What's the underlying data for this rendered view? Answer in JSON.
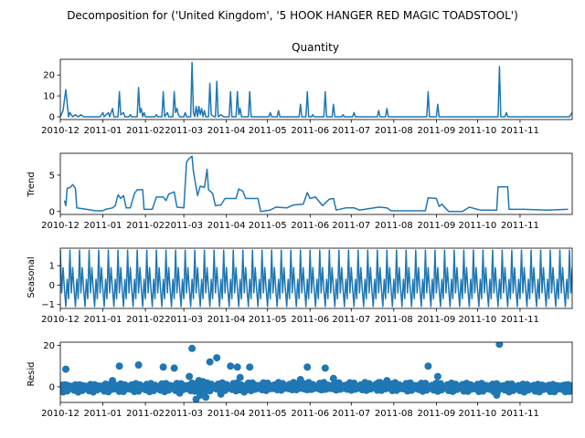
{
  "suptitle": "Decomposition for ('United Kingdom', '5 HOOK HANGER RED MAGIC TOADSTOOL')",
  "chart_data": [
    {
      "type": "line",
      "panel": "observed",
      "title": "Quantity",
      "ylabel": "",
      "ylim": [
        -1.3,
        27.5
      ],
      "yticks": [
        0,
        10,
        20
      ],
      "xlim": [
        "2010-12-01",
        "2011-12-09"
      ],
      "xticks": [
        "2010-12",
        "2011-01",
        "2011-02",
        "2011-03",
        "2011-04",
        "2011-05",
        "2011-06",
        "2011-07",
        "2011-08",
        "2011-09",
        "2011-10",
        "2011-11"
      ],
      "peaks": [
        {
          "x": "2010-12-01",
          "y": 0
        },
        {
          "x": "2010-12-03",
          "y": 3
        },
        {
          "x": "2010-12-05",
          "y": 13
        },
        {
          "x": "2010-12-07",
          "y": 0
        },
        {
          "x": "2010-12-08",
          "y": 2
        },
        {
          "x": "2010-12-10",
          "y": 0
        },
        {
          "x": "2010-12-12",
          "y": 1
        },
        {
          "x": "2010-12-14",
          "y": 0
        },
        {
          "x": "2010-12-16",
          "y": 1
        },
        {
          "x": "2010-12-18",
          "y": 0
        },
        {
          "x": "2010-12-30",
          "y": 0
        },
        {
          "x": "2011-01-01",
          "y": 2
        },
        {
          "x": "2011-01-02",
          "y": 0
        },
        {
          "x": "2011-01-05",
          "y": 2
        },
        {
          "x": "2011-01-06",
          "y": 0
        },
        {
          "x": "2011-01-08",
          "y": 4
        },
        {
          "x": "2011-01-09",
          "y": 0
        },
        {
          "x": "2011-01-12",
          "y": 0
        },
        {
          "x": "2011-01-13",
          "y": 12
        },
        {
          "x": "2011-01-14",
          "y": 1
        },
        {
          "x": "2011-01-16",
          "y": 2
        },
        {
          "x": "2011-01-17",
          "y": 0
        },
        {
          "x": "2011-01-20",
          "y": 0
        },
        {
          "x": "2011-01-21",
          "y": 1
        },
        {
          "x": "2011-01-22",
          "y": 0
        },
        {
          "x": "2011-01-26",
          "y": 0
        },
        {
          "x": "2011-01-27",
          "y": 14
        },
        {
          "x": "2011-01-28",
          "y": 2
        },
        {
          "x": "2011-01-29",
          "y": 4
        },
        {
          "x": "2011-01-30",
          "y": 0
        },
        {
          "x": "2011-01-31",
          "y": 2
        },
        {
          "x": "2011-02-01",
          "y": 0
        },
        {
          "x": "2011-02-08",
          "y": 0
        },
        {
          "x": "2011-02-09",
          "y": 1
        },
        {
          "x": "2011-02-10",
          "y": 0
        },
        {
          "x": "2011-02-13",
          "y": 0
        },
        {
          "x": "2011-02-14",
          "y": 12
        },
        {
          "x": "2011-02-15",
          "y": 0
        },
        {
          "x": "2011-02-17",
          "y": 2
        },
        {
          "x": "2011-02-18",
          "y": 0
        },
        {
          "x": "2011-02-21",
          "y": 0
        },
        {
          "x": "2011-02-22",
          "y": 12
        },
        {
          "x": "2011-02-23",
          "y": 2
        },
        {
          "x": "2011-02-24",
          "y": 4
        },
        {
          "x": "2011-02-25",
          "y": 1
        },
        {
          "x": "2011-02-26",
          "y": 0
        },
        {
          "x": "2011-03-01",
          "y": 0
        },
        {
          "x": "2011-03-02",
          "y": 2
        },
        {
          "x": "2011-03-03",
          "y": 0
        },
        {
          "x": "2011-03-06",
          "y": 0
        },
        {
          "x": "2011-03-07",
          "y": 26
        },
        {
          "x": "2011-03-08",
          "y": 2
        },
        {
          "x": "2011-03-09",
          "y": 0
        },
        {
          "x": "2011-03-10",
          "y": 5
        },
        {
          "x": "2011-03-11",
          "y": 0
        },
        {
          "x": "2011-03-12",
          "y": 5
        },
        {
          "x": "2011-03-13",
          "y": 1
        },
        {
          "x": "2011-03-14",
          "y": 4
        },
        {
          "x": "2011-03-15",
          "y": 0
        },
        {
          "x": "2011-03-16",
          "y": 3
        },
        {
          "x": "2011-03-17",
          "y": 0
        },
        {
          "x": "2011-03-19",
          "y": 0
        },
        {
          "x": "2011-03-20",
          "y": 16
        },
        {
          "x": "2011-03-21",
          "y": 1
        },
        {
          "x": "2011-03-23",
          "y": 0
        },
        {
          "x": "2011-03-24",
          "y": 0
        },
        {
          "x": "2011-03-25",
          "y": 17
        },
        {
          "x": "2011-03-26",
          "y": 0
        },
        {
          "x": "2011-03-28",
          "y": 1
        },
        {
          "x": "2011-03-30",
          "y": 0
        },
        {
          "x": "2011-04-03",
          "y": 0
        },
        {
          "x": "2011-04-04",
          "y": 12
        },
        {
          "x": "2011-04-05",
          "y": 0
        },
        {
          "x": "2011-04-08",
          "y": 0
        },
        {
          "x": "2011-04-09",
          "y": 12
        },
        {
          "x": "2011-04-10",
          "y": 1
        },
        {
          "x": "2011-04-11",
          "y": 4
        },
        {
          "x": "2011-04-12",
          "y": 0
        },
        {
          "x": "2011-04-17",
          "y": 0
        },
        {
          "x": "2011-04-18",
          "y": 12
        },
        {
          "x": "2011-04-19",
          "y": 0
        },
        {
          "x": "2011-05-02",
          "y": 0
        },
        {
          "x": "2011-05-03",
          "y": 2
        },
        {
          "x": "2011-05-04",
          "y": 0
        },
        {
          "x": "2011-05-08",
          "y": 0
        },
        {
          "x": "2011-05-09",
          "y": 3
        },
        {
          "x": "2011-05-10",
          "y": 0
        },
        {
          "x": "2011-05-24",
          "y": 0
        },
        {
          "x": "2011-05-25",
          "y": 6
        },
        {
          "x": "2011-05-26",
          "y": 0
        },
        {
          "x": "2011-05-29",
          "y": 0
        },
        {
          "x": "2011-05-30",
          "y": 12
        },
        {
          "x": "2011-05-31",
          "y": 0
        },
        {
          "x": "2011-06-02",
          "y": 0
        },
        {
          "x": "2011-06-03",
          "y": 1
        },
        {
          "x": "2011-06-04",
          "y": 0
        },
        {
          "x": "2011-06-11",
          "y": 0
        },
        {
          "x": "2011-06-12",
          "y": 12
        },
        {
          "x": "2011-06-13",
          "y": 0
        },
        {
          "x": "2011-06-17",
          "y": 0
        },
        {
          "x": "2011-06-18",
          "y": 6
        },
        {
          "x": "2011-06-19",
          "y": 0
        },
        {
          "x": "2011-06-24",
          "y": 0
        },
        {
          "x": "2011-06-25",
          "y": 1
        },
        {
          "x": "2011-06-26",
          "y": 0
        },
        {
          "x": "2011-07-02",
          "y": 0
        },
        {
          "x": "2011-07-03",
          "y": 2
        },
        {
          "x": "2011-07-04",
          "y": 0
        },
        {
          "x": "2011-07-20",
          "y": 0
        },
        {
          "x": "2011-07-21",
          "y": 3
        },
        {
          "x": "2011-07-22",
          "y": 0
        },
        {
          "x": "2011-07-26",
          "y": 0
        },
        {
          "x": "2011-07-27",
          "y": 4
        },
        {
          "x": "2011-07-28",
          "y": 0
        },
        {
          "x": "2011-08-25",
          "y": 0
        },
        {
          "x": "2011-08-26",
          "y": 12
        },
        {
          "x": "2011-08-27",
          "y": 0
        },
        {
          "x": "2011-09-01",
          "y": 0
        },
        {
          "x": "2011-09-02",
          "y": 6
        },
        {
          "x": "2011-09-03",
          "y": 0
        },
        {
          "x": "2011-10-16",
          "y": 0
        },
        {
          "x": "2011-10-17",
          "y": 24
        },
        {
          "x": "2011-10-18",
          "y": 0
        },
        {
          "x": "2011-10-21",
          "y": 0
        },
        {
          "x": "2011-10-22",
          "y": 2
        },
        {
          "x": "2011-10-23",
          "y": 0
        },
        {
          "x": "2011-12-07",
          "y": 0
        },
        {
          "x": "2011-12-09",
          "y": 2
        }
      ]
    },
    {
      "type": "line",
      "panel": "trend",
      "title": "",
      "ylabel": "Trend",
      "ylim": [
        -0.4,
        8.0
      ],
      "yticks": [
        0,
        5
      ],
      "xlim": [
        "2010-12-01",
        "2011-12-09"
      ],
      "xticks": [
        "2010-12",
        "2011-01",
        "2011-02",
        "2011-03",
        "2011-04",
        "2011-05",
        "2011-06",
        "2011-07",
        "2011-08",
        "2011-09",
        "2011-10",
        "2011-11"
      ],
      "points": [
        {
          "x": "2010-12-04",
          "y": 1.5
        },
        {
          "x": "2010-12-05",
          "y": 0.8
        },
        {
          "x": "2010-12-06",
          "y": 3.2
        },
        {
          "x": "2010-12-08",
          "y": 3.3
        },
        {
          "x": "2010-12-10",
          "y": 3.7
        },
        {
          "x": "2010-12-12",
          "y": 3.2
        },
        {
          "x": "2010-12-13",
          "y": 0.5
        },
        {
          "x": "2010-12-20",
          "y": 0.3
        },
        {
          "x": "2010-12-27",
          "y": 0.1
        },
        {
          "x": "2011-01-01",
          "y": 0.1
        },
        {
          "x": "2011-01-03",
          "y": 0.3
        },
        {
          "x": "2011-01-08",
          "y": 0.5
        },
        {
          "x": "2011-01-10",
          "y": 0.8
        },
        {
          "x": "2011-01-12",
          "y": 2.3
        },
        {
          "x": "2011-01-14",
          "y": 1.8
        },
        {
          "x": "2011-01-16",
          "y": 2.2
        },
        {
          "x": "2011-01-18",
          "y": 0.5
        },
        {
          "x": "2011-01-21",
          "y": 0.5
        },
        {
          "x": "2011-01-24",
          "y": 2.5
        },
        {
          "x": "2011-01-26",
          "y": 3.0
        },
        {
          "x": "2011-01-30",
          "y": 3.0
        },
        {
          "x": "2011-01-31",
          "y": 0.3
        },
        {
          "x": "2011-02-06",
          "y": 0.3
        },
        {
          "x": "2011-02-09",
          "y": 2.0
        },
        {
          "x": "2011-02-14",
          "y": 2.0
        },
        {
          "x": "2011-02-16",
          "y": 1.5
        },
        {
          "x": "2011-02-18",
          "y": 2.4
        },
        {
          "x": "2011-02-22",
          "y": 2.7
        },
        {
          "x": "2011-02-24",
          "y": 0.6
        },
        {
          "x": "2011-03-01",
          "y": 0.5
        },
        {
          "x": "2011-03-03",
          "y": 6.8
        },
        {
          "x": "2011-03-05",
          "y": 7.3
        },
        {
          "x": "2011-03-07",
          "y": 7.6
        },
        {
          "x": "2011-03-08",
          "y": 5.5
        },
        {
          "x": "2011-03-11",
          "y": 2.2
        },
        {
          "x": "2011-03-13",
          "y": 3.5
        },
        {
          "x": "2011-03-16",
          "y": 3.3
        },
        {
          "x": "2011-03-18",
          "y": 5.8
        },
        {
          "x": "2011-03-19",
          "y": 3.0
        },
        {
          "x": "2011-03-22",
          "y": 2.5
        },
        {
          "x": "2011-03-24",
          "y": 0.8
        },
        {
          "x": "2011-03-28",
          "y": 0.9
        },
        {
          "x": "2011-03-31",
          "y": 1.8
        },
        {
          "x": "2011-04-08",
          "y": 1.8
        },
        {
          "x": "2011-04-10",
          "y": 3.1
        },
        {
          "x": "2011-04-13",
          "y": 2.8
        },
        {
          "x": "2011-04-15",
          "y": 1.8
        },
        {
          "x": "2011-04-24",
          "y": 1.8
        },
        {
          "x": "2011-04-26",
          "y": 0.0
        },
        {
          "x": "2011-05-03",
          "y": 0.2
        },
        {
          "x": "2011-05-07",
          "y": 0.6
        },
        {
          "x": "2011-05-15",
          "y": 0.5
        },
        {
          "x": "2011-05-20",
          "y": 0.9
        },
        {
          "x": "2011-05-27",
          "y": 1.0
        },
        {
          "x": "2011-05-30",
          "y": 2.6
        },
        {
          "x": "2011-06-01",
          "y": 1.8
        },
        {
          "x": "2011-06-05",
          "y": 2.0
        },
        {
          "x": "2011-06-10",
          "y": 0.8
        },
        {
          "x": "2011-06-15",
          "y": 1.7
        },
        {
          "x": "2011-06-18",
          "y": 1.8
        },
        {
          "x": "2011-06-20",
          "y": 0.2
        },
        {
          "x": "2011-06-27",
          "y": 0.5
        },
        {
          "x": "2011-07-03",
          "y": 0.5
        },
        {
          "x": "2011-07-07",
          "y": 0.2
        },
        {
          "x": "2011-07-14",
          "y": 0.4
        },
        {
          "x": "2011-07-21",
          "y": 0.6
        },
        {
          "x": "2011-07-27",
          "y": 0.5
        },
        {
          "x": "2011-07-30",
          "y": 0.1
        },
        {
          "x": "2011-08-05",
          "y": 0.1
        },
        {
          "x": "2011-08-14",
          "y": 0.1
        },
        {
          "x": "2011-08-24",
          "y": 0.1
        },
        {
          "x": "2011-08-26",
          "y": 1.9
        },
        {
          "x": "2011-09-01",
          "y": 1.8
        },
        {
          "x": "2011-09-03",
          "y": 0.7
        },
        {
          "x": "2011-09-05",
          "y": 1.0
        },
        {
          "x": "2011-09-10",
          "y": 0.0
        },
        {
          "x": "2011-09-20",
          "y": 0.0
        },
        {
          "x": "2011-09-25",
          "y": 0.6
        },
        {
          "x": "2011-10-03",
          "y": 0.2
        },
        {
          "x": "2011-10-15",
          "y": 0.2
        },
        {
          "x": "2011-10-16",
          "y": 3.4
        },
        {
          "x": "2011-10-23",
          "y": 3.4
        },
        {
          "x": "2011-10-24",
          "y": 0.3
        },
        {
          "x": "2011-11-04",
          "y": 0.3
        },
        {
          "x": "2011-11-20",
          "y": 0.2
        },
        {
          "x": "2011-12-06",
          "y": 0.3
        }
      ]
    },
    {
      "type": "line",
      "panel": "seasonal",
      "title": "",
      "ylabel": "Seasonal",
      "ylim": [
        -1.2,
        1.9
      ],
      "yticks": [
        -1,
        0,
        1
      ],
      "xlim": [
        "2010-12-01",
        "2011-12-09"
      ],
      "xticks": [
        "2010-12",
        "2011-01",
        "2011-02",
        "2011-03",
        "2011-04",
        "2011-05",
        "2011-06",
        "2011-07",
        "2011-08",
        "2011-09",
        "2011-10",
        "2011-11"
      ],
      "period_days": 7,
      "cycle": [
        1.8,
        -0.4,
        0.9,
        -0.2,
        -1.1,
        0.3,
        -0.7
      ]
    },
    {
      "type": "scatter",
      "panel": "resid",
      "title": "",
      "ylabel": "Resid",
      "ylim": [
        -7.5,
        21.5
      ],
      "yticks": [
        0,
        20
      ],
      "xlim": [
        "2010-12-01",
        "2011-12-09"
      ],
      "xticks": [
        "2010-12",
        "2011-01",
        "2011-02",
        "2011-03",
        "2011-04",
        "2011-05",
        "2011-06",
        "2011-07",
        "2011-08",
        "2011-09",
        "2011-10",
        "2011-11"
      ],
      "points": [
        {
          "x": "2010-12-05",
          "y": 8.5
        },
        {
          "x": "2011-01-13",
          "y": 10.0
        },
        {
          "x": "2011-01-27",
          "y": 10.5
        },
        {
          "x": "2011-02-14",
          "y": 9.5
        },
        {
          "x": "2011-02-22",
          "y": 9.0
        },
        {
          "x": "2011-03-07",
          "y": 18.5
        },
        {
          "x": "2011-03-10",
          "y": -6.0
        },
        {
          "x": "2011-03-20",
          "y": 12.0
        },
        {
          "x": "2011-03-25",
          "y": 14.0
        },
        {
          "x": "2011-04-04",
          "y": 10.0
        },
        {
          "x": "2011-04-09",
          "y": 9.5
        },
        {
          "x": "2011-04-18",
          "y": 9.5
        },
        {
          "x": "2011-05-30",
          "y": 9.5
        },
        {
          "x": "2011-06-12",
          "y": 9.0
        },
        {
          "x": "2011-08-26",
          "y": 10.0
        },
        {
          "x": "2011-09-02",
          "y": 5.0
        },
        {
          "x": "2011-10-17",
          "y": 20.5
        },
        {
          "x": "2011-10-15",
          "y": -4.0
        },
        {
          "x": "2011-03-05",
          "y": 5.0
        },
        {
          "x": "2011-03-15",
          "y": 2.5
        },
        {
          "x": "2011-04-11",
          "y": 4.5
        },
        {
          "x": "2011-05-25",
          "y": 3.5
        },
        {
          "x": "2011-06-18",
          "y": 4.0
        },
        {
          "x": "2011-07-27",
          "y": 3.0
        },
        {
          "x": "2011-07-21",
          "y": 2.0
        },
        {
          "x": "2011-01-08",
          "y": 3.0
        },
        {
          "x": "2011-03-12",
          "y": 3.0
        },
        {
          "x": "2011-03-13",
          "y": -4.0
        },
        {
          "x": "2011-03-17",
          "y": -5.0
        },
        {
          "x": "2011-03-28",
          "y": -3.5
        },
        {
          "x": "2011-02-26",
          "y": -3.0
        },
        {
          "x": "2011-04-14",
          "y": -2.5
        }
      ]
    }
  ]
}
